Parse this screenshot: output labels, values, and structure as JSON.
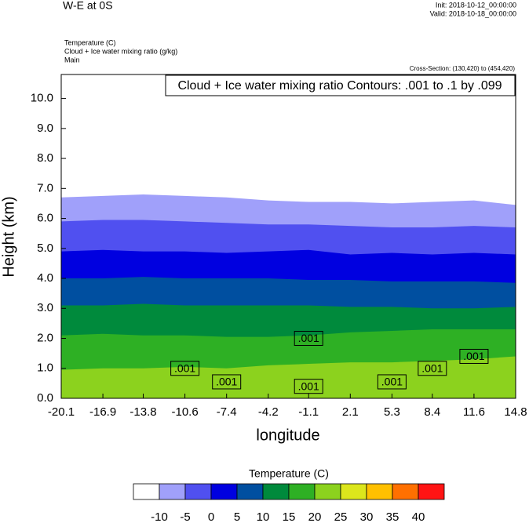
{
  "chart_data": {
    "type": "contourf",
    "title": "W-E at 0S",
    "init": "Init: 2018-10-12_00:00:00",
    "valid": "Valid: 2018-10-18_00:00:00",
    "fields": [
      "Temperature   (C)",
      "Cloud + Ice water mixing ratio   (g/kg)",
      "Main"
    ],
    "cross_section": "Cross-Section: (130,420) to (454,420)",
    "contour_info": "Cloud + Ice water mixing ratio Contours: .001 to .1 by .099",
    "xlabel": "longitude",
    "ylabel": "Height (km)",
    "xlim": [
      -20.1,
      14.8
    ],
    "xticks": [
      -20.1,
      -16.9,
      -13.8,
      -10.6,
      -7.4,
      -4.2,
      -1.1,
      2.1,
      5.3,
      8.4,
      11.6,
      14.8
    ],
    "ylim": [
      0,
      10.8
    ],
    "yticks": [
      {
        "value": 0,
        "label": "0.0"
      },
      {
        "value": 1,
        "label": "1.0"
      },
      {
        "value": 2,
        "label": "2.0"
      },
      {
        "value": 3,
        "label": "3.0"
      },
      {
        "value": 4,
        "label": "4.0"
      },
      {
        "value": 5,
        "label": "5.0"
      },
      {
        "value": 6,
        "label": "6.0"
      },
      {
        "value": 7,
        "label": "7.0"
      },
      {
        "value": 8,
        "label": "8.0"
      },
      {
        "value": 9,
        "label": "9.0"
      },
      {
        "value": 10,
        "label": "10.0"
      }
    ],
    "x": [
      -20.1,
      -16.9,
      -13.8,
      -10.6,
      -7.4,
      -4.2,
      -1.1,
      2.1,
      5.3,
      8.4,
      11.6,
      14.8
    ],
    "contours": [
      {
        "level": 20,
        "heights": [
          0.95,
          1.0,
          1.0,
          1.05,
          1.0,
          1.1,
          1.15,
          1.2,
          1.2,
          1.25,
          1.3,
          1.4
        ]
      },
      {
        "level": 15,
        "heights": [
          2.1,
          2.15,
          2.1,
          2.1,
          2.05,
          2.05,
          2.1,
          2.2,
          2.25,
          2.3,
          2.3,
          2.3
        ]
      },
      {
        "level": 10,
        "heights": [
          3.1,
          3.1,
          3.15,
          3.1,
          3.1,
          3.1,
          3.1,
          3.05,
          3.05,
          3.0,
          3.0,
          3.05
        ]
      },
      {
        "level": 5,
        "heights": [
          4.0,
          4.0,
          4.05,
          4.0,
          4.0,
          4.0,
          3.95,
          3.95,
          3.9,
          3.9,
          3.9,
          3.85
        ]
      },
      {
        "level": 0,
        "heights": [
          4.9,
          4.95,
          4.9,
          4.9,
          4.85,
          4.9,
          4.95,
          4.8,
          4.85,
          4.8,
          4.85,
          4.8
        ]
      },
      {
        "level": -5,
        "heights": [
          5.9,
          5.95,
          5.95,
          5.9,
          5.85,
          5.8,
          5.8,
          5.75,
          5.7,
          5.7,
          5.75,
          5.7
        ]
      },
      {
        "level": -10,
        "heights": [
          6.7,
          6.75,
          6.8,
          6.75,
          6.7,
          6.6,
          6.55,
          6.55,
          6.5,
          6.55,
          6.6,
          6.45
        ]
      }
    ],
    "contour_labels": [
      {
        "text": ".001",
        "x": -10.6,
        "y": 1.0
      },
      {
        "text": ".001",
        "x": -7.4,
        "y": 0.55
      },
      {
        "text": ".001",
        "x": -1.1,
        "y": 2.0
      },
      {
        "text": ".001",
        "x": -1.1,
        "y": 0.4
      },
      {
        "text": ".001",
        "x": 5.3,
        "y": 0.55
      },
      {
        "text": ".001",
        "x": 8.4,
        "y": 1.0
      },
      {
        "text": ".001",
        "x": 11.6,
        "y": 1.4
      }
    ],
    "colorbar_title": "Temperature  (C)",
    "levels": [
      -10,
      -5,
      0,
      5,
      10,
      15,
      20,
      25,
      30,
      35,
      40
    ],
    "colors": [
      "#ffffff",
      "#a0a0fa",
      "#5050f0",
      "#0000e0",
      "#004fa0",
      "#008a3c",
      "#2eb024",
      "#8cd21e",
      "#dce61c",
      "#ffc000",
      "#ff7000",
      "#ff1414"
    ]
  }
}
